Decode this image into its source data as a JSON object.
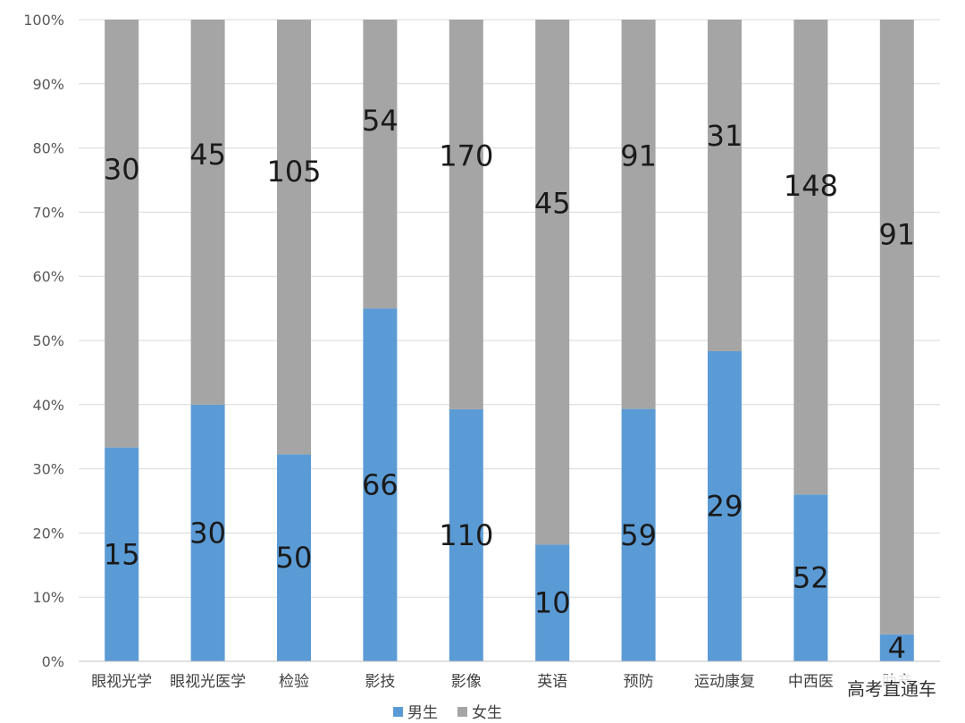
{
  "chart_data": {
    "type": "bar",
    "stacked": "percent",
    "categories": [
      "眼视光学",
      "眼视光医学",
      "检验",
      "影技",
      "影像",
      "英语",
      "预防",
      "运动康复",
      "中西医",
      "助产"
    ],
    "series": [
      {
        "name": "男生",
        "color": "#5b9bd5",
        "values": [
          15,
          30,
          50,
          66,
          110,
          10,
          59,
          29,
          52,
          4
        ]
      },
      {
        "name": "女生",
        "color": "#a5a5a5",
        "values": [
          30,
          45,
          105,
          54,
          170,
          45,
          91,
          31,
          148,
          91
        ]
      }
    ],
    "y_ticks": [
      "0%",
      "10%",
      "20%",
      "30%",
      "40%",
      "50%",
      "60%",
      "70%",
      "80%",
      "90%",
      "100%"
    ],
    "ylim": [
      0,
      100
    ],
    "grid": true,
    "legend_position": "bottom"
  },
  "watermark": "高考直通车"
}
